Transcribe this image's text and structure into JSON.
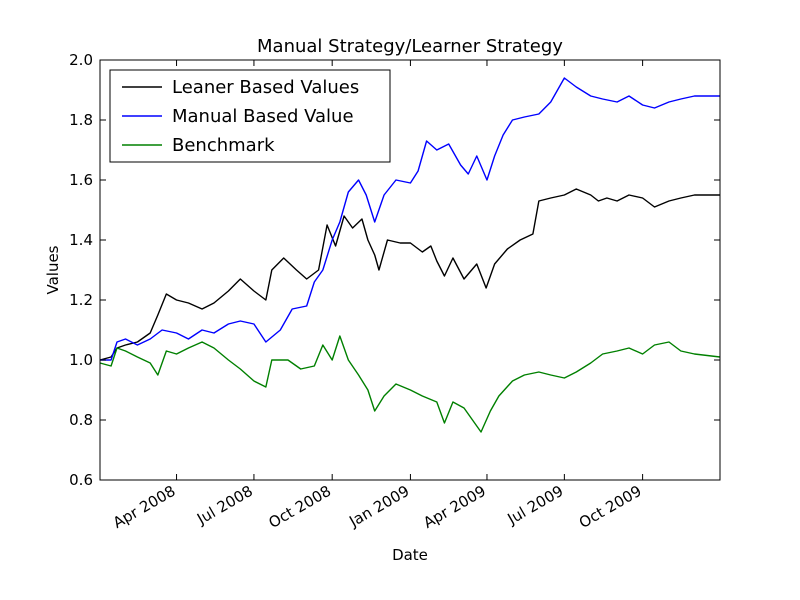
{
  "chart_data": {
    "type": "line",
    "title": "Manual Strategy/Learner Strategy",
    "xlabel": "Date",
    "ylabel": "Values",
    "ylim": [
      0.6,
      2.0
    ],
    "yticks": [
      "0.6",
      "0.8",
      "1.0",
      "1.2",
      "1.4",
      "1.6",
      "1.8",
      "2.0"
    ],
    "xlim": [
      "2008-01-02",
      "2009-12-31"
    ],
    "xticks": [
      {
        "date": "2008-04-01",
        "label": "Apr 2008"
      },
      {
        "date": "2008-07-01",
        "label": "Jul 2008"
      },
      {
        "date": "2008-10-01",
        "label": "Oct 2008"
      },
      {
        "date": "2009-01-01",
        "label": "Jan 2009"
      },
      {
        "date": "2009-04-01",
        "label": "Apr 2009"
      },
      {
        "date": "2009-07-01",
        "label": "Jul 2009"
      },
      {
        "date": "2009-10-01",
        "label": "Oct 2009"
      }
    ],
    "grid": false,
    "legend_position": "top-left",
    "series": [
      {
        "name": "Leaner Based Values",
        "color": "#000000",
        "points": [
          [
            "2008-01-02",
            1.0
          ],
          [
            "2008-01-15",
            1.01
          ],
          [
            "2008-01-22",
            1.04
          ],
          [
            "2008-02-01",
            1.05
          ],
          [
            "2008-02-15",
            1.06
          ],
          [
            "2008-03-01",
            1.09
          ],
          [
            "2008-03-10",
            1.15
          ],
          [
            "2008-03-20",
            1.22
          ],
          [
            "2008-04-01",
            1.2
          ],
          [
            "2008-04-15",
            1.19
          ],
          [
            "2008-05-01",
            1.17
          ],
          [
            "2008-05-15",
            1.19
          ],
          [
            "2008-06-01",
            1.23
          ],
          [
            "2008-06-15",
            1.27
          ],
          [
            "2008-07-01",
            1.23
          ],
          [
            "2008-07-15",
            1.2
          ],
          [
            "2008-07-22",
            1.3
          ],
          [
            "2008-08-05",
            1.34
          ],
          [
            "2008-08-20",
            1.3
          ],
          [
            "2008-09-01",
            1.27
          ],
          [
            "2008-09-15",
            1.3
          ],
          [
            "2008-09-25",
            1.45
          ],
          [
            "2008-10-05",
            1.38
          ],
          [
            "2008-10-15",
            1.48
          ],
          [
            "2008-10-25",
            1.44
          ],
          [
            "2008-11-05",
            1.47
          ],
          [
            "2008-11-12",
            1.4
          ],
          [
            "2008-11-20",
            1.35
          ],
          [
            "2008-11-25",
            1.3
          ],
          [
            "2008-12-05",
            1.4
          ],
          [
            "2008-12-20",
            1.39
          ],
          [
            "2009-01-01",
            1.39
          ],
          [
            "2009-01-15",
            1.36
          ],
          [
            "2009-01-25",
            1.38
          ],
          [
            "2009-02-01",
            1.33
          ],
          [
            "2009-02-10",
            1.28
          ],
          [
            "2009-02-20",
            1.34
          ],
          [
            "2009-03-05",
            1.27
          ],
          [
            "2009-03-20",
            1.32
          ],
          [
            "2009-03-31",
            1.24
          ],
          [
            "2009-04-10",
            1.32
          ],
          [
            "2009-04-25",
            1.37
          ],
          [
            "2009-05-10",
            1.4
          ],
          [
            "2009-05-25",
            1.42
          ],
          [
            "2009-06-01",
            1.53
          ],
          [
            "2009-06-15",
            1.54
          ],
          [
            "2009-07-01",
            1.55
          ],
          [
            "2009-07-15",
            1.57
          ],
          [
            "2009-08-01",
            1.55
          ],
          [
            "2009-08-10",
            1.53
          ],
          [
            "2009-08-20",
            1.54
          ],
          [
            "2009-09-01",
            1.53
          ],
          [
            "2009-09-15",
            1.55
          ],
          [
            "2009-10-01",
            1.54
          ],
          [
            "2009-10-15",
            1.51
          ],
          [
            "2009-11-01",
            1.53
          ],
          [
            "2009-11-15",
            1.54
          ],
          [
            "2009-12-01",
            1.55
          ],
          [
            "2009-12-31",
            1.55
          ]
        ]
      },
      {
        "name": "Manual Based Value",
        "color": "#0000ff",
        "points": [
          [
            "2008-01-02",
            1.0
          ],
          [
            "2008-01-15",
            1.0
          ],
          [
            "2008-01-22",
            1.06
          ],
          [
            "2008-02-01",
            1.07
          ],
          [
            "2008-02-15",
            1.05
          ],
          [
            "2008-03-01",
            1.07
          ],
          [
            "2008-03-15",
            1.1
          ],
          [
            "2008-04-01",
            1.09
          ],
          [
            "2008-04-15",
            1.07
          ],
          [
            "2008-05-01",
            1.1
          ],
          [
            "2008-05-15",
            1.09
          ],
          [
            "2008-06-01",
            1.12
          ],
          [
            "2008-06-15",
            1.13
          ],
          [
            "2008-07-01",
            1.12
          ],
          [
            "2008-07-15",
            1.06
          ],
          [
            "2008-08-01",
            1.1
          ],
          [
            "2008-08-15",
            1.17
          ],
          [
            "2008-09-01",
            1.18
          ],
          [
            "2008-09-10",
            1.26
          ],
          [
            "2008-09-20",
            1.3
          ],
          [
            "2008-10-01",
            1.4
          ],
          [
            "2008-10-10",
            1.46
          ],
          [
            "2008-10-20",
            1.56
          ],
          [
            "2008-11-01",
            1.6
          ],
          [
            "2008-11-10",
            1.55
          ],
          [
            "2008-11-20",
            1.46
          ],
          [
            "2008-12-01",
            1.55
          ],
          [
            "2008-12-15",
            1.6
          ],
          [
            "2009-01-01",
            1.59
          ],
          [
            "2009-01-10",
            1.63
          ],
          [
            "2009-01-20",
            1.73
          ],
          [
            "2009-02-01",
            1.7
          ],
          [
            "2009-02-15",
            1.72
          ],
          [
            "2009-03-01",
            1.65
          ],
          [
            "2009-03-10",
            1.62
          ],
          [
            "2009-03-20",
            1.68
          ],
          [
            "2009-04-01",
            1.6
          ],
          [
            "2009-04-10",
            1.68
          ],
          [
            "2009-04-20",
            1.75
          ],
          [
            "2009-05-01",
            1.8
          ],
          [
            "2009-05-15",
            1.81
          ],
          [
            "2009-06-01",
            1.82
          ],
          [
            "2009-06-15",
            1.86
          ],
          [
            "2009-07-01",
            1.94
          ],
          [
            "2009-07-15",
            1.91
          ],
          [
            "2009-08-01",
            1.88
          ],
          [
            "2009-08-15",
            1.87
          ],
          [
            "2009-09-01",
            1.86
          ],
          [
            "2009-09-15",
            1.88
          ],
          [
            "2009-10-01",
            1.85
          ],
          [
            "2009-10-15",
            1.84
          ],
          [
            "2009-11-01",
            1.86
          ],
          [
            "2009-11-15",
            1.87
          ],
          [
            "2009-12-01",
            1.88
          ],
          [
            "2009-12-31",
            1.88
          ]
        ]
      },
      {
        "name": "Benchmark",
        "color": "#008000",
        "points": [
          [
            "2008-01-02",
            0.99
          ],
          [
            "2008-01-15",
            0.98
          ],
          [
            "2008-01-22",
            1.04
          ],
          [
            "2008-02-01",
            1.03
          ],
          [
            "2008-02-15",
            1.01
          ],
          [
            "2008-03-01",
            0.99
          ],
          [
            "2008-03-10",
            0.95
          ],
          [
            "2008-03-20",
            1.03
          ],
          [
            "2008-04-01",
            1.02
          ],
          [
            "2008-04-15",
            1.04
          ],
          [
            "2008-05-01",
            1.06
          ],
          [
            "2008-05-15",
            1.04
          ],
          [
            "2008-06-01",
            1.0
          ],
          [
            "2008-06-15",
            0.97
          ],
          [
            "2008-07-01",
            0.93
          ],
          [
            "2008-07-15",
            0.91
          ],
          [
            "2008-07-22",
            1.0
          ],
          [
            "2008-08-10",
            1.0
          ],
          [
            "2008-08-25",
            0.97
          ],
          [
            "2008-09-10",
            0.98
          ],
          [
            "2008-09-20",
            1.05
          ],
          [
            "2008-10-01",
            1.0
          ],
          [
            "2008-10-10",
            1.08
          ],
          [
            "2008-10-20",
            1.0
          ],
          [
            "2008-11-01",
            0.95
          ],
          [
            "2008-11-12",
            0.9
          ],
          [
            "2008-11-20",
            0.83
          ],
          [
            "2008-12-01",
            0.88
          ],
          [
            "2008-12-15",
            0.92
          ],
          [
            "2009-01-01",
            0.9
          ],
          [
            "2009-01-15",
            0.88
          ],
          [
            "2009-02-01",
            0.86
          ],
          [
            "2009-02-10",
            0.79
          ],
          [
            "2009-02-20",
            0.86
          ],
          [
            "2009-03-05",
            0.84
          ],
          [
            "2009-03-15",
            0.8
          ],
          [
            "2009-03-25",
            0.76
          ],
          [
            "2009-04-05",
            0.83
          ],
          [
            "2009-04-15",
            0.88
          ],
          [
            "2009-05-01",
            0.93
          ],
          [
            "2009-05-15",
            0.95
          ],
          [
            "2009-06-01",
            0.96
          ],
          [
            "2009-06-15",
            0.95
          ],
          [
            "2009-07-01",
            0.94
          ],
          [
            "2009-07-15",
            0.96
          ],
          [
            "2009-08-01",
            0.99
          ],
          [
            "2009-08-15",
            1.02
          ],
          [
            "2009-09-01",
            1.03
          ],
          [
            "2009-09-15",
            1.04
          ],
          [
            "2009-10-01",
            1.02
          ],
          [
            "2009-10-15",
            1.05
          ],
          [
            "2009-11-01",
            1.06
          ],
          [
            "2009-11-15",
            1.03
          ],
          [
            "2009-12-01",
            1.02
          ],
          [
            "2009-12-31",
            1.01
          ]
        ]
      }
    ]
  }
}
